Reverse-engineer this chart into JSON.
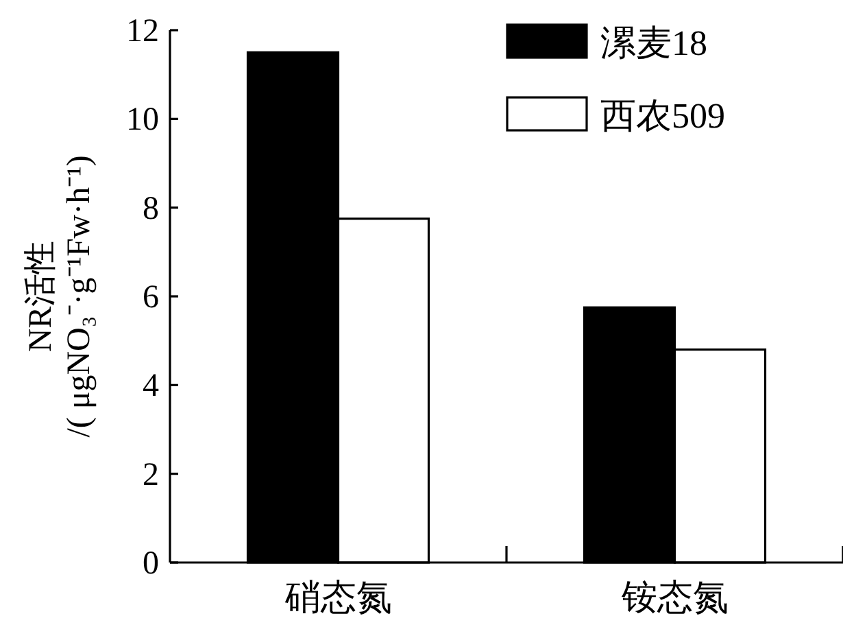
{
  "chart_data": {
    "type": "bar",
    "ylabel": "NR活性\n/( μgNO₃⁻·g⁻¹Fw·h⁻¹)",
    "categories": [
      "硝态氮",
      "铵态氮"
    ],
    "series": [
      {
        "name": "漯麦18",
        "color": "#000000",
        "values": [
          11.5,
          5.75
        ]
      },
      {
        "name": "西农509",
        "color": "#ffffff",
        "values": [
          7.75,
          4.8
        ]
      }
    ],
    "ylim": [
      0,
      12
    ],
    "yticks": [
      0,
      2,
      4,
      6,
      8,
      10,
      12
    ],
    "legend": "top right",
    "grid": false
  }
}
